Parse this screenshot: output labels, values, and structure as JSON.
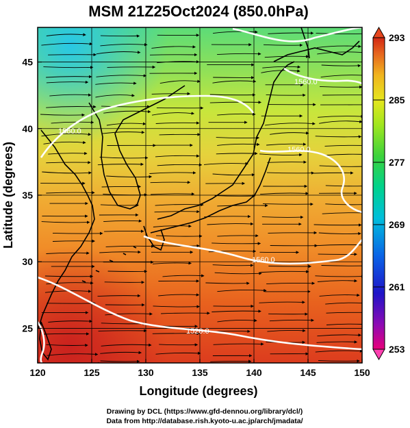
{
  "title": "MSM 21Z25Oct2024 (850.0hPa)",
  "xlabel": "Longitude (degrees)",
  "ylabel": "Latitude  (degrees)",
  "credits": [
    "Drawing by DCL (https://www.gfd-dennou.org/library/dcl/)",
    "Data from http://database.rish.kyoto-u.ac.jp/arch/jmadata/"
  ],
  "map": {
    "lon_range": [
      120,
      150
    ],
    "lat_range": [
      22.4,
      47.6
    ],
    "lon_ticks": [
      120,
      125,
      130,
      135,
      140,
      145,
      150
    ],
    "lat_ticks": [
      25,
      30,
      35,
      40,
      45
    ],
    "grid": true,
    "field": "temperature (colour shading, K)",
    "vectors": "wind streamlines",
    "contour_color": "#ffffff",
    "coastline_color": "#000000"
  },
  "colorbar": {
    "min": 253,
    "max": 293,
    "ticks": [
      293,
      285,
      277,
      269,
      261,
      253
    ],
    "colors": [
      "#e8007a",
      "#5a0ab4",
      "#0a1ed2",
      "#0a78e6",
      "#00c8d2",
      "#00d278",
      "#3cd23c",
      "#a0e61e",
      "#e6e61e",
      "#f0c81e",
      "#f08c1e",
      "#e6461e",
      "#c81e1e"
    ]
  },
  "contour_labels": [
    {
      "text": "1560.0"
    },
    {
      "text": "1560.0"
    },
    {
      "text": "1560.0"
    },
    {
      "text": "1560.0"
    },
    {
      "text": "1520.0"
    }
  ]
}
